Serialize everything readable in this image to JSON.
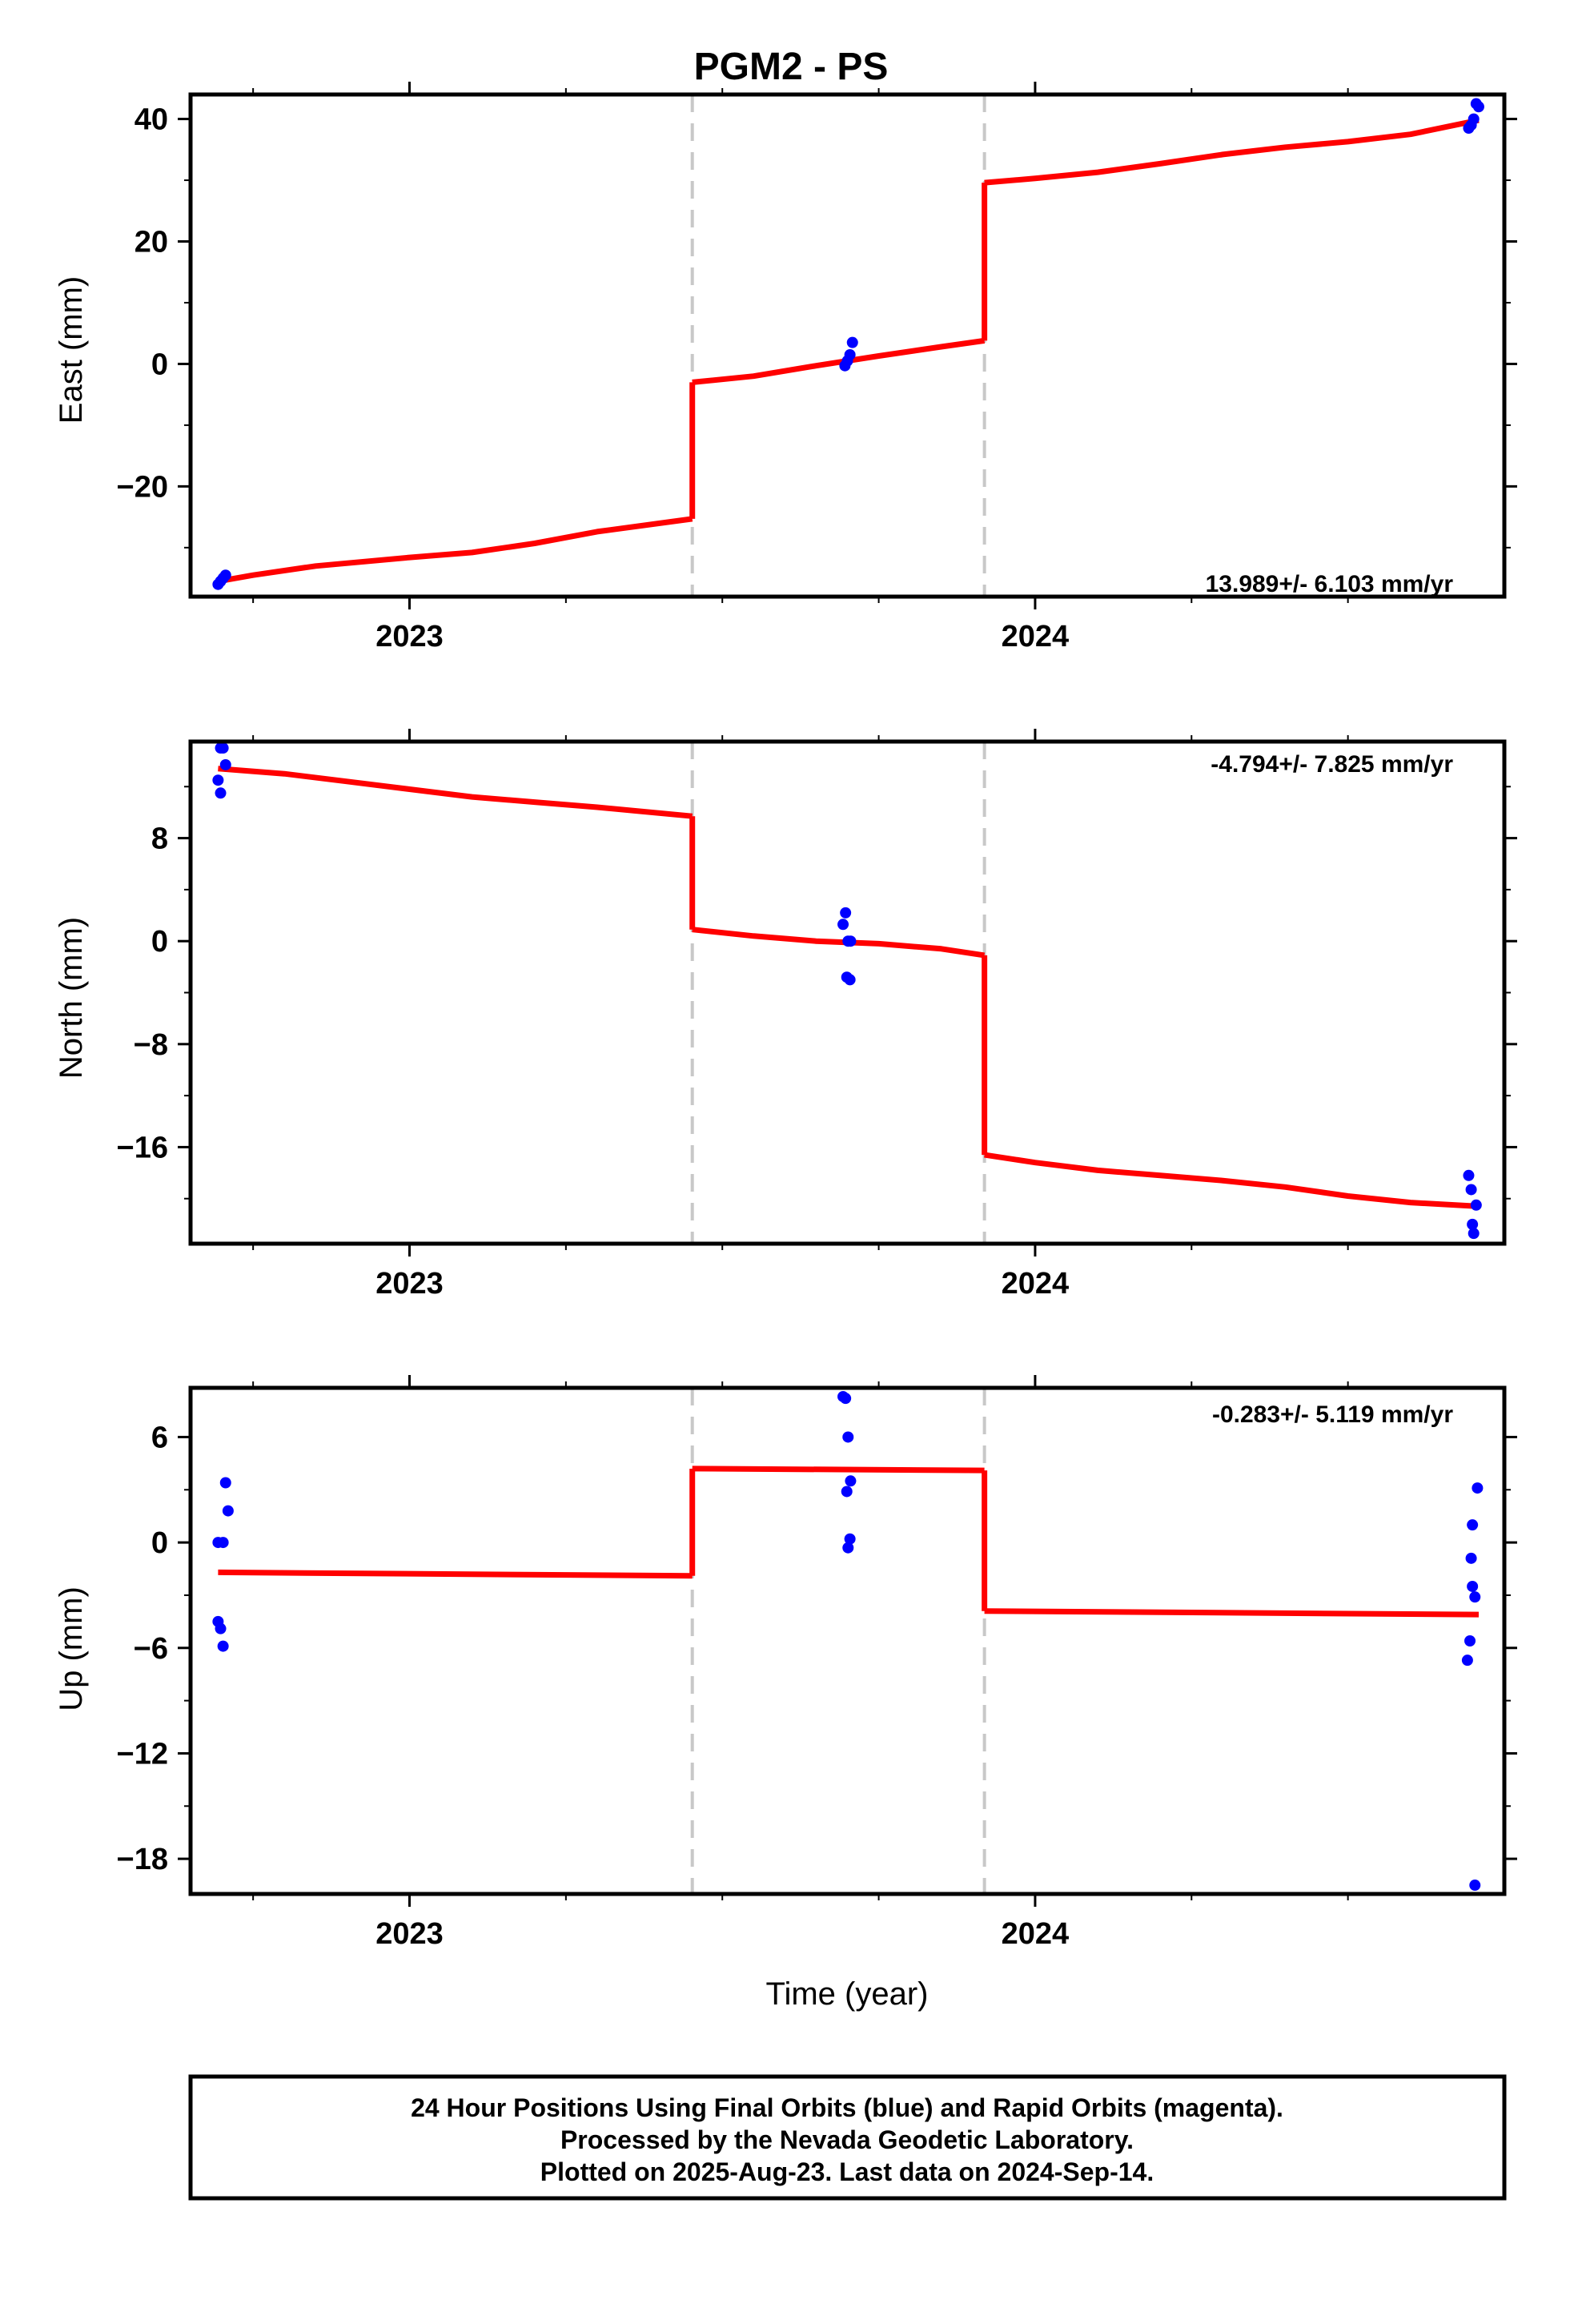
{
  "title": "PGM2 - PS",
  "xlabel": "Time (year)",
  "footer": {
    "line1": "24 Hour Positions Using Final Orbits (blue) and Rapid Orbits (magenta).",
    "line2": "Processed by the Nevada Geodetic Laboratory.",
    "line3": "Plotted on 2025-Aug-23. Last data on 2024-Sep-14."
  },
  "chart_data": [
    {
      "type": "scatter",
      "component": "east",
      "ylabel": "East (mm)",
      "rate_label": "13.989+/- 6.103 mm/yr",
      "xlim": [
        2022.65,
        2024.75
      ],
      "ylim": [
        -38,
        44
      ],
      "xticks": [
        2023,
        2024
      ],
      "xticks_minor": [
        2022.75,
        2023.25,
        2023.5,
        2023.75,
        2024.25,
        2024.5
      ],
      "yticks": [
        -20,
        0,
        20,
        40
      ],
      "yticks_minor": [
        -30,
        -10,
        10,
        30
      ],
      "breaks": [
        2023.452,
        2023.919
      ],
      "points": {
        "color": "#0000ff",
        "x": [
          2022.694,
          2022.698,
          2022.702,
          2022.706,
          2023.696,
          2023.7,
          2023.704,
          2023.708,
          2024.693,
          2024.697,
          2024.701,
          2024.705,
          2024.709
        ],
        "y": [
          -36,
          -35.5,
          -35,
          -34.5,
          -0.3,
          0.5,
          1.5,
          3.5,
          38.5,
          39,
          40,
          42.5,
          42
        ]
      },
      "model": {
        "color": "#ff0000",
        "segments": [
          {
            "x": [
              2022.694,
              2022.75,
              2022.85,
              2023.0,
              2023.1,
              2023.2,
              2023.3,
              2023.452
            ],
            "y": [
              -35.5,
              -34.5,
              -33,
              -31.6,
              -30.8,
              -29.3,
              -27.4,
              -25.3
            ]
          },
          {
            "x": [
              2023.452,
              2023.55,
              2023.65,
              2023.75,
              2023.85,
              2023.919
            ],
            "y": [
              -3,
              -2,
              -0.3,
              1.3,
              2.8,
              3.8
            ]
          },
          {
            "x": [
              2023.919,
              2024.0,
              2024.1,
              2024.2,
              2024.3,
              2024.4,
              2024.5,
              2024.6,
              2024.709
            ],
            "y": [
              29.6,
              30.3,
              31.3,
              32.7,
              34.2,
              35.4,
              36.3,
              37.5,
              39.8
            ]
          }
        ]
      }
    },
    {
      "type": "scatter",
      "component": "north",
      "ylabel": "North (mm)",
      "rate_label": "-4.794+/- 7.825 mm/yr",
      "xlim": [
        2022.65,
        2024.75
      ],
      "ylim": [
        -23.5,
        15.5
      ],
      "xticks": [
        2023,
        2024
      ],
      "xticks_minor": [
        2022.75,
        2023.25,
        2023.5,
        2023.75,
        2024.25,
        2024.5
      ],
      "yticks": [
        -16,
        -8,
        0,
        8
      ],
      "yticks_minor": [
        -20,
        -12,
        -4,
        4,
        12
      ],
      "breaks": [
        2023.452,
        2023.919
      ],
      "points": {
        "color": "#0000ff",
        "x": [
          2022.694,
          2022.698,
          2022.702,
          2022.706,
          2022.698,
          2023.693,
          2023.697,
          2023.701,
          2023.705,
          2023.699,
          2023.704,
          2024.693,
          2024.697,
          2024.701,
          2024.705,
          2024.699
        ],
        "y": [
          12.5,
          11.5,
          15,
          13.7,
          15,
          1.3,
          2.2,
          0,
          0,
          -2.8,
          -3,
          -18.2,
          -19.3,
          -22.7,
          -20.5,
          -22
        ],
        "note_empty": ""
      },
      "model": {
        "color": "#ff0000",
        "segments": [
          {
            "x": [
              2022.694,
              2022.8,
              2022.9,
              2023.0,
              2023.1,
              2023.2,
              2023.3,
              2023.452
            ],
            "y": [
              13.4,
              13,
              12.4,
              11.8,
              11.2,
              10.8,
              10.4,
              9.7
            ]
          },
          {
            "x": [
              2023.452,
              2023.55,
              2023.65,
              2023.75,
              2023.85,
              2023.919
            ],
            "y": [
              0.9,
              0.4,
              0,
              -0.2,
              -0.6,
              -1.1
            ]
          },
          {
            "x": [
              2023.919,
              2024.0,
              2024.1,
              2024.2,
              2024.3,
              2024.4,
              2024.5,
              2024.6,
              2024.709
            ],
            "y": [
              -16.6,
              -17.2,
              -17.8,
              -18.2,
              -18.6,
              -19.1,
              -19.8,
              -20.3,
              -20.6
            ]
          }
        ]
      }
    },
    {
      "type": "scatter",
      "component": "up",
      "ylabel": "Up (mm)",
      "rate_label": "-0.283+/- 5.119 mm/yr",
      "xlim": [
        2022.65,
        2024.75
      ],
      "ylim": [
        -20,
        8.8
      ],
      "xticks": [
        2023,
        2024
      ],
      "xticks_minor": [
        2022.75,
        2023.25,
        2023.5,
        2023.75,
        2024.25,
        2024.5
      ],
      "yticks": [
        -18,
        -12,
        -6,
        0,
        6
      ],
      "yticks_minor": [
        -15,
        -9,
        -3,
        3
      ],
      "breaks": [
        2023.452,
        2023.919
      ],
      "points": {
        "color": "#0000ff",
        "x": [
          2022.694,
          2022.698,
          2022.702,
          2022.706,
          2022.71,
          2022.694,
          2022.702,
          2023.693,
          2023.697,
          2023.701,
          2023.705,
          2023.699,
          2023.704,
          2023.701,
          2024.691,
          2024.695,
          2024.699,
          2024.703,
          2024.707,
          2024.699,
          2024.703,
          2024.697
        ],
        "y": [
          -4.5,
          -4.9,
          -5.9,
          3.4,
          1.8,
          0,
          0,
          8.3,
          8.2,
          6,
          3.5,
          2.9,
          0.2,
          -0.3,
          -6.7,
          -5.6,
          -2.5,
          -3.1,
          3.1,
          1,
          -19.5,
          -0.9
        ],
        "note_empty": ""
      },
      "model": {
        "color": "#ff0000",
        "segments": [
          {
            "x": [
              2022.694,
              2023.452
            ],
            "y": [
              -1.7,
              -1.9
            ]
          },
          {
            "x": [
              2023.452,
              2023.919
            ],
            "y": [
              4.2,
              4.1
            ]
          },
          {
            "x": [
              2023.919,
              2024.709
            ],
            "y": [
              -3.9,
              -4.1
            ]
          }
        ]
      }
    }
  ]
}
